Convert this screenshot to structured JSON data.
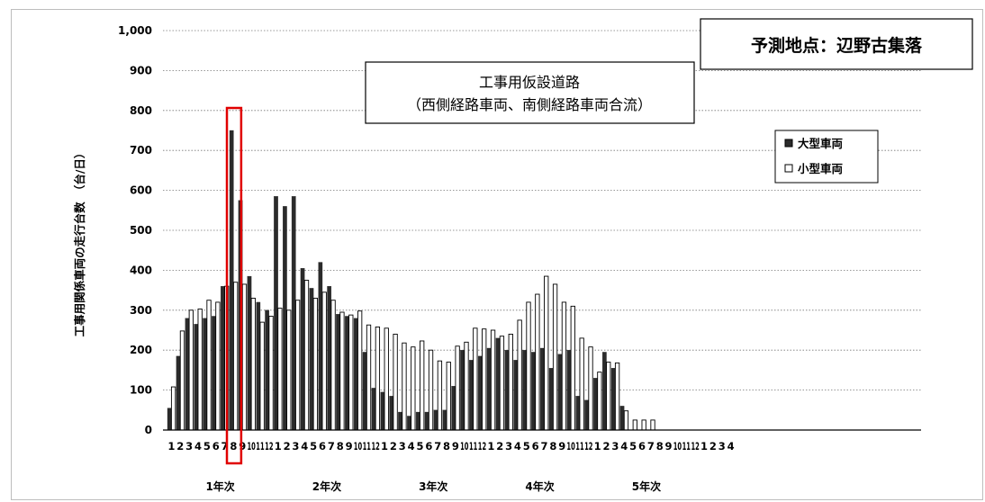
{
  "chart_data": {
    "type": "bar",
    "title_lines": [
      "工事用仮設道路",
      "（西側経路車両、南側経路車両合流）"
    ],
    "location_label": "予測地点：辺野古集落",
    "ylabel": "工事用関係車両の走行台数　（台/日）",
    "ylim": [
      0,
      1000
    ],
    "y_ticks": [
      "0",
      "100",
      "200",
      "300",
      "400",
      "500",
      "600",
      "700",
      "800",
      "900",
      "1,000"
    ],
    "categories": [
      "1",
      "2",
      "3",
      "4",
      "5",
      "6",
      "7",
      "8",
      "9",
      "10",
      "11",
      "12",
      "1",
      "2",
      "3",
      "4",
      "5",
      "6",
      "7",
      "8",
      "9",
      "10",
      "11",
      "12",
      "1",
      "2",
      "3",
      "4",
      "5",
      "6",
      "7",
      "8",
      "9",
      "10",
      "11",
      "12",
      "1",
      "2",
      "3",
      "4",
      "5",
      "6",
      "7",
      "8",
      "9",
      "10",
      "11",
      "12",
      "1",
      "2",
      "3",
      "4",
      "5",
      "6",
      "7",
      "8",
      "9",
      "10",
      "11",
      "12",
      "1",
      "2",
      "3",
      "4"
    ],
    "year_labels": [
      "1年次",
      "2年次",
      "3年次",
      "4年次",
      "5年次"
    ],
    "series": [
      {
        "name": "大型車両",
        "color": "#2b2b2b",
        "values": [
          55,
          185,
          280,
          265,
          280,
          285,
          360,
          750,
          575,
          385,
          320,
          300,
          585,
          560,
          585,
          405,
          355,
          420,
          360,
          290,
          285,
          280,
          195,
          105,
          95,
          85,
          45,
          35,
          45,
          45,
          50,
          50,
          110,
          200,
          175,
          185,
          205,
          230,
          200,
          175,
          200,
          195,
          205,
          155,
          190,
          200,
          85,
          75,
          130,
          195,
          155,
          60,
          0,
          0,
          0,
          0,
          0,
          0,
          0,
          0,
          0,
          0,
          0,
          0
        ]
      },
      {
        "name": "小型車両",
        "color": "#ffffff",
        "values": [
          108,
          248,
          300,
          303,
          325,
          320,
          360,
          370,
          365,
          330,
          270,
          285,
          305,
          300,
          325,
          375,
          330,
          345,
          325,
          295,
          288,
          298,
          263,
          258,
          255,
          240,
          218,
          208,
          223,
          200,
          173,
          170,
          210,
          220,
          255,
          253,
          250,
          235,
          240,
          275,
          320,
          340,
          385,
          365,
          320,
          310,
          230,
          208,
          145,
          170,
          168,
          48,
          25,
          25,
          25,
          0,
          0,
          0,
          0,
          0,
          0,
          0,
          0,
          0
        ]
      }
    ],
    "highlight_index": 7,
    "highlight_color": "#e00000",
    "grid": "horizontal-dotted",
    "legend_position": "right"
  }
}
